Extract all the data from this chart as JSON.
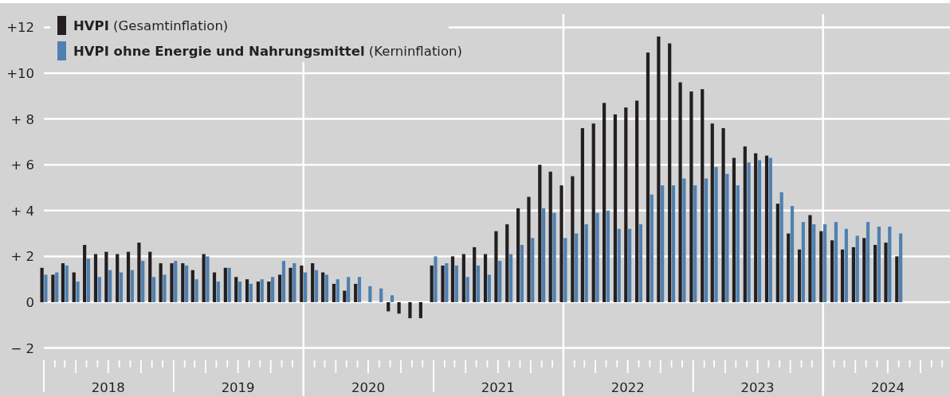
{
  "chart_data": {
    "type": "bar",
    "x": [
      "2018-01",
      "2018-02",
      "2018-03",
      "2018-04",
      "2018-05",
      "2018-06",
      "2018-07",
      "2018-08",
      "2018-09",
      "2018-10",
      "2018-11",
      "2018-12",
      "2019-01",
      "2019-02",
      "2019-03",
      "2019-04",
      "2019-05",
      "2019-06",
      "2019-07",
      "2019-08",
      "2019-09",
      "2019-10",
      "2019-11",
      "2019-12",
      "2020-01",
      "2020-02",
      "2020-03",
      "2020-04",
      "2020-05",
      "2020-06",
      "2020-07",
      "2020-08",
      "2020-09",
      "2020-10",
      "2020-11",
      "2020-12",
      "2021-01",
      "2021-02",
      "2021-03",
      "2021-04",
      "2021-05",
      "2021-06",
      "2021-07",
      "2021-08",
      "2021-09",
      "2021-10",
      "2021-11",
      "2021-12",
      "2022-01",
      "2022-02",
      "2022-03",
      "2022-04",
      "2022-05",
      "2022-06",
      "2022-07",
      "2022-08",
      "2022-09",
      "2022-10",
      "2022-11",
      "2022-12",
      "2023-01",
      "2023-02",
      "2023-03",
      "2023-04",
      "2023-05",
      "2023-06",
      "2023-07",
      "2023-08",
      "2023-09",
      "2023-10",
      "2023-11",
      "2023-12",
      "2024-01",
      "2024-02",
      "2024-03",
      "2024-04",
      "2024-05",
      "2024-06",
      "2024-07",
      "2024-08"
    ],
    "series": [
      {
        "name": "HVPI (Gesamtinflation)",
        "color": "#231f20",
        "values": [
          1.5,
          1.2,
          1.7,
          1.3,
          2.5,
          2.1,
          2.2,
          2.1,
          2.2,
          2.6,
          2.2,
          1.7,
          1.7,
          1.7,
          1.4,
          2.1,
          1.3,
          1.5,
          1.1,
          1.0,
          0.9,
          0.9,
          1.2,
          1.5,
          1.6,
          1.7,
          1.3,
          0.8,
          0.5,
          0.8,
          0,
          0,
          -0.4,
          -0.5,
          -0.7,
          -0.7,
          1.6,
          1.6,
          2.0,
          2.1,
          2.4,
          2.1,
          3.1,
          3.4,
          4.1,
          4.6,
          6.0,
          5.7,
          5.1,
          5.5,
          7.6,
          7.8,
          8.7,
          8.2,
          8.5,
          8.8,
          10.9,
          11.6,
          11.3,
          9.6,
          9.2,
          9.3,
          7.8,
          7.6,
          6.3,
          6.8,
          6.5,
          6.4,
          4.3,
          3.0,
          2.3,
          3.8,
          3.1,
          2.7,
          2.3,
          2.4,
          2.8,
          2.5,
          2.6,
          2.0
        ]
      },
      {
        "name": "HVPI ohne Energie und Nahrungsmittel (Kerninflation)",
        "color": "#5080b0",
        "values": [
          1.2,
          1.3,
          1.6,
          0.9,
          1.9,
          1.1,
          1.4,
          1.3,
          1.4,
          1.8,
          1.1,
          1.2,
          1.8,
          1.6,
          1.0,
          2.0,
          0.9,
          1.5,
          0.9,
          0.8,
          1.0,
          1.1,
          1.8,
          1.7,
          1.3,
          1.4,
          1.2,
          1.0,
          1.1,
          1.1,
          0.7,
          0.6,
          0.3,
          0,
          0,
          0,
          2.0,
          1.7,
          1.6,
          1.1,
          1.6,
          1.2,
          1.8,
          2.1,
          2.5,
          2.8,
          4.1,
          3.9,
          2.8,
          3.0,
          3.4,
          3.9,
          4.0,
          3.2,
          3.2,
          3.4,
          4.7,
          5.1,
          5.1,
          5.4,
          5.1,
          5.4,
          5.9,
          5.6,
          5.1,
          6.1,
          6.2,
          6.3,
          4.8,
          4.2,
          3.5,
          3.4,
          3.4,
          3.5,
          3.2,
          2.9,
          3.5,
          3.3,
          3.3,
          3.0
        ]
      }
    ],
    "xlim": [
      "2018-01",
      "2025-01"
    ],
    "xticks": [
      {
        "value": "2018-07",
        "label": "2018"
      },
      {
        "value": "2019-07",
        "label": "2019"
      },
      {
        "value": "2020-07",
        "label": "2020"
      },
      {
        "value": "2021-07",
        "label": "2021"
      },
      {
        "value": "2022-07",
        "label": "2022"
      },
      {
        "value": "2023-07",
        "label": "2023"
      },
      {
        "value": "2024-07",
        "label": "2024"
      }
    ],
    "ylim": [
      -2,
      12
    ],
    "yticks": [
      {
        "value": -2,
        "label": "− 2"
      },
      0,
      {
        "value": 2,
        "label": "+ 2"
      },
      {
        "value": 4,
        "label": "+ 4"
      },
      {
        "value": 6,
        "label": "+ 6"
      },
      {
        "value": 8,
        "label": "+ 8"
      },
      {
        "value": 10,
        "label": "+10"
      },
      {
        "value": 12,
        "label": "+12"
      }
    ],
    "ref_lines": [
      {
        "axis": "x",
        "value": "2020-01",
        "color": "#ffffff"
      },
      {
        "axis": "x",
        "value": "2022-01",
        "color": "#ffffff"
      },
      {
        "axis": "x",
        "value": "2024-01",
        "color": "#ffffff"
      }
    ],
    "grid": "y",
    "legend": "top left"
  }
}
